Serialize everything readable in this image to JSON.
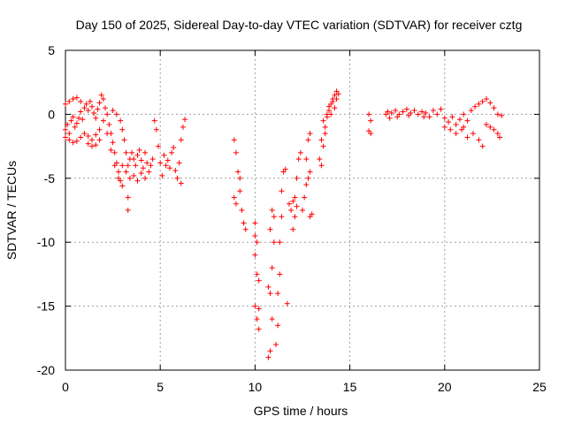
{
  "chart_data": {
    "type": "scatter",
    "title": "Day 150 of 2025, Sidereal Day-to-day VTEC variation (SDTVAR) for receiver cztg",
    "xlabel": "GPS time / hours",
    "ylabel": "SDTVAR / TECUs",
    "xlim": [
      0,
      25
    ],
    "ylim": [
      -20,
      5
    ],
    "xticks": [
      0,
      5,
      10,
      15,
      20,
      25
    ],
    "yticks": [
      -20,
      -15,
      -10,
      -5,
      0,
      5
    ],
    "grid": true,
    "marker": "+",
    "series": [
      {
        "name": "SDTVAR",
        "color": "#ff0000",
        "points": [
          [
            0.0,
            -1.2
          ],
          [
            0.1,
            -0.8
          ],
          [
            0.2,
            -1.5
          ],
          [
            0.3,
            -0.5
          ],
          [
            0.4,
            -0.2
          ],
          [
            0.5,
            -1.0
          ],
          [
            0.6,
            -0.7
          ],
          [
            0.7,
            -0.3
          ],
          [
            0.8,
            0.2
          ],
          [
            0.9,
            -0.4
          ],
          [
            1.0,
            0.5
          ],
          [
            1.1,
            0.8
          ],
          [
            1.2,
            0.3
          ],
          [
            1.3,
            1.0
          ],
          [
            1.4,
            0.6
          ],
          [
            1.5,
            0.1
          ],
          [
            1.6,
            -0.3
          ],
          [
            1.7,
            0.4
          ],
          [
            1.8,
            0.9
          ],
          [
            1.9,
            1.5
          ],
          [
            0.0,
            0.8
          ],
          [
            0.2,
            1.0
          ],
          [
            0.4,
            1.2
          ],
          [
            0.6,
            1.3
          ],
          [
            0.8,
            1.0
          ],
          [
            0.0,
            -1.8
          ],
          [
            0.2,
            -2.0
          ],
          [
            0.4,
            -2.2
          ],
          [
            0.6,
            -2.1
          ],
          [
            0.8,
            -1.8
          ],
          [
            1.0,
            -1.5
          ],
          [
            1.2,
            -1.7
          ],
          [
            1.4,
            -2.0
          ],
          [
            1.6,
            -1.6
          ],
          [
            1.8,
            -1.2
          ],
          [
            1.2,
            -2.3
          ],
          [
            1.4,
            -2.5
          ],
          [
            1.6,
            -2.4
          ],
          [
            1.8,
            -2.0
          ],
          [
            2.0,
            1.2
          ],
          [
            2.1,
            0.5
          ],
          [
            2.2,
            0.0
          ],
          [
            2.3,
            -0.8
          ],
          [
            2.4,
            -1.5
          ],
          [
            2.5,
            -2.2
          ],
          [
            2.6,
            -3.0
          ],
          [
            2.7,
            -3.8
          ],
          [
            2.8,
            -4.5
          ],
          [
            2.9,
            -5.2
          ],
          [
            2.0,
            -0.5
          ],
          [
            2.2,
            -1.5
          ],
          [
            2.4,
            -2.8
          ],
          [
            2.6,
            -4.0
          ],
          [
            2.8,
            -5.0
          ],
          [
            3.0,
            -5.6
          ],
          [
            2.5,
            0.3
          ],
          [
            2.7,
            0.0
          ],
          [
            2.9,
            -0.5
          ],
          [
            3.0,
            -1.2
          ],
          [
            3.1,
            -2.0
          ],
          [
            3.2,
            -3.0
          ],
          [
            3.3,
            -4.0
          ],
          [
            3.4,
            -5.0
          ],
          [
            3.3,
            -6.5
          ],
          [
            3.3,
            -7.5
          ],
          [
            3.5,
            -3.0
          ],
          [
            3.6,
            -3.5
          ],
          [
            3.7,
            -4.0
          ],
          [
            3.8,
            -3.2
          ],
          [
            3.9,
            -2.8
          ],
          [
            4.0,
            -3.6
          ],
          [
            4.1,
            -4.2
          ],
          [
            4.2,
            -3.0
          ],
          [
            4.3,
            -3.8
          ],
          [
            4.4,
            -4.5
          ],
          [
            4.5,
            -4.0
          ],
          [
            4.6,
            -3.5
          ],
          [
            4.7,
            -0.5
          ],
          [
            4.8,
            -1.2
          ],
          [
            4.9,
            -2.5
          ],
          [
            5.0,
            -3.8
          ],
          [
            5.1,
            -4.8
          ],
          [
            5.2,
            -3.2
          ],
          [
            5.3,
            -4.0
          ],
          [
            5.4,
            -3.6
          ],
          [
            5.5,
            -4.2
          ],
          [
            5.6,
            -3.0
          ],
          [
            5.7,
            -2.6
          ],
          [
            5.8,
            -4.4
          ],
          [
            5.9,
            -5.0
          ],
          [
            6.0,
            -3.8
          ],
          [
            6.1,
            -2.0
          ],
          [
            6.2,
            -1.0
          ],
          [
            6.3,
            -0.4
          ],
          [
            6.1,
            -5.4
          ],
          [
            3.0,
            -4.0
          ],
          [
            3.2,
            -4.5
          ],
          [
            3.4,
            -3.5
          ],
          [
            3.6,
            -4.8
          ],
          [
            3.8,
            -5.2
          ],
          [
            4.0,
            -4.6
          ],
          [
            4.2,
            -5.0
          ],
          [
            8.9,
            -2.0
          ],
          [
            9.0,
            -3.0
          ],
          [
            9.1,
            -4.5
          ],
          [
            9.2,
            -6.0
          ],
          [
            9.3,
            -7.5
          ],
          [
            9.4,
            -8.5
          ],
          [
            9.5,
            -9.0
          ],
          [
            8.9,
            -6.5
          ],
          [
            9.0,
            -7.0
          ],
          [
            9.2,
            -5.0
          ],
          [
            10.0,
            -9.5
          ],
          [
            10.0,
            -11.0
          ],
          [
            10.1,
            -12.5
          ],
          [
            10.2,
            -13.0
          ],
          [
            10.0,
            -15.0
          ],
          [
            10.1,
            -16.0
          ],
          [
            10.2,
            -16.8
          ],
          [
            10.0,
            -8.5
          ],
          [
            10.1,
            -10.0
          ],
          [
            10.2,
            -15.2
          ],
          [
            10.7,
            -19.0
          ],
          [
            10.8,
            -18.5
          ],
          [
            10.9,
            -16.0
          ],
          [
            10.8,
            -14.0
          ],
          [
            10.9,
            -12.0
          ],
          [
            11.0,
            -10.0
          ],
          [
            11.0,
            -8.0
          ],
          [
            10.9,
            -7.5
          ],
          [
            10.8,
            -9.0
          ],
          [
            10.7,
            -13.5
          ],
          [
            11.1,
            -18.0
          ],
          [
            11.2,
            -16.5
          ],
          [
            11.2,
            -14.0
          ],
          [
            11.3,
            -12.5
          ],
          [
            11.3,
            -10.0
          ],
          [
            11.4,
            -8.0
          ],
          [
            11.4,
            -6.0
          ],
          [
            11.5,
            -4.5
          ],
          [
            11.6,
            -4.3
          ],
          [
            11.7,
            -14.8
          ],
          [
            11.8,
            -7.0
          ],
          [
            12.0,
            -9.0
          ],
          [
            12.1,
            -6.5
          ],
          [
            12.2,
            -5.0
          ],
          [
            12.3,
            -3.5
          ],
          [
            12.4,
            -3.0
          ],
          [
            12.1,
            -8.0
          ],
          [
            11.9,
            -7.5
          ],
          [
            12.0,
            -6.8
          ],
          [
            12.2,
            -7.2
          ],
          [
            12.5,
            -7.5
          ],
          [
            12.6,
            -6.5
          ],
          [
            12.7,
            -5.5
          ],
          [
            12.7,
            -3.5
          ],
          [
            12.8,
            -2.0
          ],
          [
            12.9,
            -1.5
          ],
          [
            12.9,
            -8.0
          ],
          [
            13.0,
            -7.8
          ],
          [
            12.9,
            -4.5
          ],
          [
            12.8,
            -5.0
          ],
          [
            13.5,
            -4.0
          ],
          [
            13.6,
            -2.5
          ],
          [
            13.7,
            -1.0
          ],
          [
            13.8,
            0.0
          ],
          [
            13.9,
            0.6
          ],
          [
            14.0,
            0.8
          ],
          [
            14.1,
            1.2
          ],
          [
            14.2,
            1.5
          ],
          [
            14.3,
            1.8
          ],
          [
            14.4,
            1.6
          ],
          [
            13.6,
            -0.5
          ],
          [
            13.7,
            -1.5
          ],
          [
            13.8,
            -0.2
          ],
          [
            13.9,
            0.3
          ],
          [
            14.0,
            0.0
          ],
          [
            14.2,
            0.5
          ],
          [
            13.4,
            -3.5
          ],
          [
            13.5,
            -2.0
          ],
          [
            14.1,
            1.0
          ],
          [
            14.3,
            1.2
          ],
          [
            16.0,
            0.0
          ],
          [
            16.1,
            -0.5
          ],
          [
            16.0,
            -1.3
          ],
          [
            16.1,
            -1.5
          ],
          [
            16.9,
            0.0
          ],
          [
            17.0,
            0.2
          ],
          [
            17.2,
            0.1
          ],
          [
            17.4,
            0.3
          ],
          [
            17.6,
            0.0
          ],
          [
            17.8,
            0.2
          ],
          [
            18.0,
            0.4
          ],
          [
            18.2,
            0.1
          ],
          [
            18.4,
            0.3
          ],
          [
            18.6,
            0.0
          ],
          [
            18.8,
            0.2
          ],
          [
            19.0,
            0.1
          ],
          [
            19.2,
            -0.2
          ],
          [
            19.4,
            0.3
          ],
          [
            19.6,
            0.0
          ],
          [
            19.8,
            0.4
          ],
          [
            17.1,
            -0.3
          ],
          [
            17.5,
            -0.2
          ],
          [
            18.1,
            -0.1
          ],
          [
            18.9,
            -0.2
          ],
          [
            20.0,
            -0.3
          ],
          [
            20.2,
            -0.6
          ],
          [
            20.4,
            -0.2
          ],
          [
            20.6,
            -0.8
          ],
          [
            20.8,
            -0.4
          ],
          [
            21.0,
            0.0
          ],
          [
            21.2,
            -0.5
          ],
          [
            21.4,
            0.3
          ],
          [
            21.6,
            0.6
          ],
          [
            21.8,
            0.8
          ],
          [
            22.0,
            1.0
          ],
          [
            22.2,
            1.2
          ],
          [
            22.4,
            0.9
          ],
          [
            22.6,
            0.5
          ],
          [
            22.8,
            0.0
          ],
          [
            23.0,
            -0.1
          ],
          [
            20.0,
            -1.0
          ],
          [
            20.3,
            -1.2
          ],
          [
            20.6,
            -1.5
          ],
          [
            20.9,
            -1.2
          ],
          [
            21.2,
            -1.8
          ],
          [
            21.5,
            -1.5
          ],
          [
            21.8,
            -2.0
          ],
          [
            22.0,
            -2.5
          ],
          [
            22.2,
            -0.8
          ],
          [
            22.4,
            -1.0
          ],
          [
            22.6,
            -1.2
          ],
          [
            22.8,
            -1.5
          ],
          [
            22.9,
            -1.8
          ],
          [
            21.0,
            -1.0
          ]
        ]
      }
    ]
  }
}
